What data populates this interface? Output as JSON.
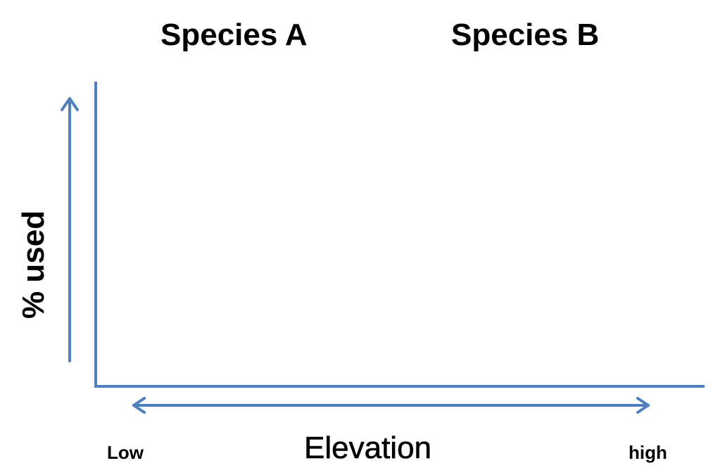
{
  "diagram": {
    "titles": {
      "species_a": "Species A",
      "species_b": "Species B"
    },
    "y_axis_label": "% used",
    "x_axis_label": "Elevation",
    "x_axis_low": "Low",
    "x_axis_high": "high",
    "colors": {
      "axis": "#4f7fbf",
      "text": "#000000",
      "background": "#ffffff"
    }
  }
}
